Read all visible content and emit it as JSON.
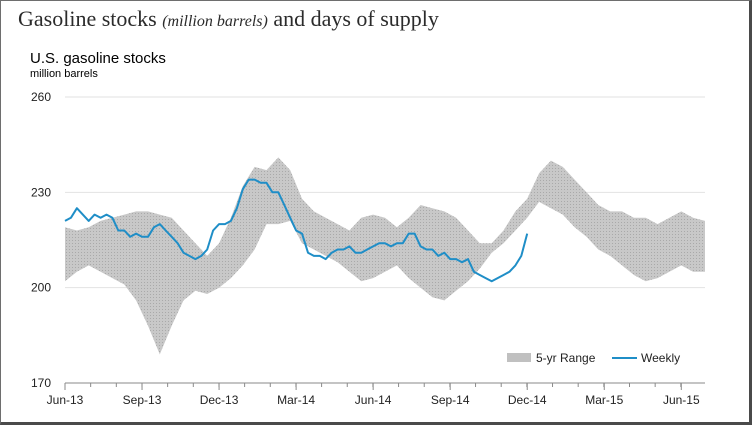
{
  "header": {
    "title_part1": "Gasoline stocks ",
    "title_part2": "(million barrels)",
    "title_part3": " and days of supply"
  },
  "chart_data": {
    "type": "area",
    "title": "U.S. gasoline stocks",
    "ylabel": "million barrels",
    "xlabel": "",
    "ylim": [
      170,
      260
    ],
    "yticks": [
      170,
      200,
      230,
      260
    ],
    "xlim": [
      0,
      108
    ],
    "xtick_positions": [
      0,
      13,
      26,
      39,
      52,
      65,
      78,
      91,
      104
    ],
    "xtick_labels": [
      "Jun-13",
      "Sep-13",
      "Dec-13",
      "Mar-14",
      "Jun-14",
      "Sep-14",
      "Dec-14",
      "Mar-15",
      "Jun-15"
    ],
    "grid": "horizontal",
    "legend": "bottom-right",
    "colors": {
      "range": "#c4c4c4",
      "weekly": "#1f8ec7",
      "grid": "#e2e2e2"
    },
    "series": [
      {
        "name": "5-yr Range",
        "x": [
          0,
          2,
          4,
          6,
          8,
          10,
          12,
          14,
          16,
          18,
          20,
          22,
          24,
          26,
          28,
          30,
          32,
          34,
          36,
          38,
          40,
          42,
          44,
          46,
          48,
          50,
          52,
          54,
          56,
          58,
          60,
          62,
          64,
          66,
          68,
          70,
          72,
          74,
          76,
          78,
          80,
          82,
          84,
          86,
          88,
          90,
          92,
          94,
          96,
          98,
          100,
          102,
          104,
          106,
          108
        ],
        "low": [
          202,
          205,
          207,
          205,
          203,
          201,
          196,
          188,
          179,
          188,
          196,
          199,
          198,
          200,
          203,
          207,
          212,
          220,
          220,
          221,
          214,
          212,
          210,
          208,
          205,
          202,
          203,
          205,
          207,
          203,
          200,
          197,
          196,
          199,
          202,
          206,
          211,
          214,
          218,
          222,
          227,
          225,
          223,
          219,
          216,
          212,
          210,
          207,
          204,
          202,
          203,
          205,
          207,
          205,
          205
        ],
        "high": [
          219,
          218,
          219,
          221,
          222,
          223,
          224,
          224,
          223,
          222,
          218,
          214,
          210,
          214,
          222,
          232,
          238,
          237,
          241,
          237,
          228,
          224,
          222,
          220,
          218,
          222,
          223,
          222,
          219,
          222,
          226,
          225,
          224,
          222,
          218,
          214,
          214,
          218,
          224,
          228,
          236,
          240,
          238,
          234,
          230,
          226,
          224,
          224,
          222,
          222,
          220,
          222,
          224,
          222,
          221
        ]
      },
      {
        "name": "Weekly",
        "x": [
          0,
          1,
          2,
          3,
          4,
          5,
          6,
          7,
          8,
          9,
          10,
          11,
          12,
          13,
          14,
          15,
          16,
          17,
          18,
          19,
          20,
          21,
          22,
          23,
          24,
          25,
          26,
          27,
          28,
          29,
          30,
          31,
          32,
          33,
          34,
          35,
          36,
          37,
          38,
          39,
          40,
          41,
          42,
          43,
          44,
          45,
          46,
          47,
          48,
          49,
          50,
          51,
          52,
          53,
          54,
          55,
          56,
          57,
          58,
          59,
          60,
          61,
          62,
          63,
          64,
          65,
          66,
          67,
          68,
          69,
          70,
          71,
          72,
          73,
          74,
          75,
          76,
          77,
          78
        ],
        "values": [
          221,
          222,
          225,
          223,
          221,
          223,
          222,
          223,
          222,
          218,
          218,
          216,
          217,
          216,
          216,
          219,
          220,
          218,
          216,
          214,
          211,
          210,
          209,
          210,
          212,
          218,
          220,
          220,
          221,
          225,
          231,
          234,
          234,
          233,
          233,
          230,
          230,
          226,
          222,
          218,
          217,
          211,
          210,
          210,
          209,
          211,
          212,
          212,
          213,
          211,
          211,
          212,
          213,
          214,
          214,
          213,
          214,
          214,
          217,
          217,
          213,
          212,
          212,
          210,
          211,
          209,
          209,
          208,
          209,
          205,
          204,
          203,
          202,
          203,
          204,
          205,
          207,
          210,
          217
        ]
      }
    ]
  }
}
